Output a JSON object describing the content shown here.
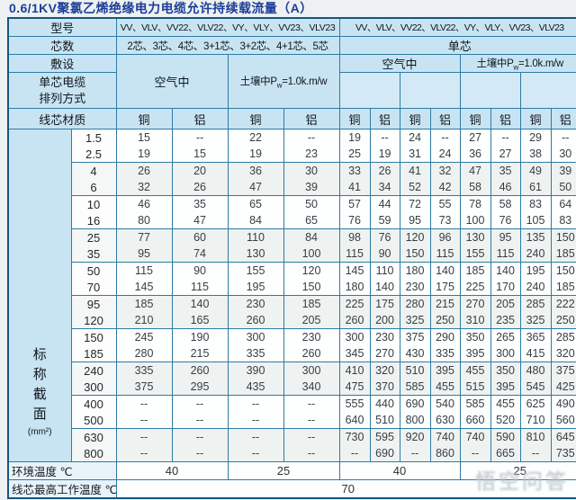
{
  "title": "0.6/1KV聚氯乙烯绝缘电力电缆允许持续载流量（A）",
  "header": {
    "model_label": "型号",
    "model_multi": "VV、VLV、VV22、VLV22、VY、VLY、VV23、VLV23",
    "model_single": "VV、VLV、VV22、VLV22、VY、VLY、VV23、VLV23",
    "cores_label": "芯数",
    "cores_multi": "2芯、3芯、4芯、3+1芯、3+2芯、4+1芯、5芯",
    "cores_single": "单芯",
    "laying_label": "敷设",
    "arrangement_line1": "单芯电缆",
    "arrangement_line2": "排列方式",
    "air_label": "空气中",
    "soil_prefix": "土壤中P",
    "soil_sub": "w",
    "soil_suffix": "=1.0k.m/w",
    "material_label": "线芯材质",
    "copper": "铜",
    "aluminum": "铝"
  },
  "section_label": {
    "chars": [
      "标",
      "称",
      "截",
      "面"
    ],
    "unit": "(mm²)"
  },
  "rows": [
    {
      "size": "1.5",
      "values": [
        "15",
        "--",
        "22",
        "--",
        "19",
        "--",
        "24",
        "--",
        "27",
        "--",
        "29",
        "--"
      ]
    },
    {
      "size": "2.5",
      "values": [
        "19",
        "15",
        "19",
        "23",
        "25",
        "19",
        "31",
        "24",
        "36",
        "27",
        "38",
        "30"
      ]
    },
    {
      "size": "4",
      "values": [
        "26",
        "20",
        "36",
        "30",
        "33",
        "26",
        "41",
        "32",
        "47",
        "35",
        "49",
        "39"
      ]
    },
    {
      "size": "6",
      "values": [
        "32",
        "26",
        "47",
        "39",
        "41",
        "34",
        "52",
        "42",
        "58",
        "46",
        "61",
        "50"
      ]
    },
    {
      "size": "10",
      "values": [
        "46",
        "35",
        "65",
        "50",
        "57",
        "44",
        "72",
        "55",
        "78",
        "58",
        "83",
        "64"
      ]
    },
    {
      "size": "16",
      "values": [
        "80",
        "47",
        "84",
        "65",
        "76",
        "59",
        "95",
        "73",
        "100",
        "76",
        "105",
        "83"
      ]
    },
    {
      "size": "25",
      "values": [
        "77",
        "60",
        "110",
        "84",
        "98",
        "76",
        "120",
        "96",
        "130",
        "95",
        "135",
        "150"
      ]
    },
    {
      "size": "35",
      "values": [
        "95",
        "74",
        "130",
        "100",
        "115",
        "90",
        "150",
        "115",
        "155",
        "115",
        "240",
        "185"
      ]
    },
    {
      "size": "50",
      "values": [
        "115",
        "90",
        "155",
        "120",
        "145",
        "110",
        "180",
        "140",
        "185",
        "140",
        "195",
        "150"
      ]
    },
    {
      "size": "70",
      "values": [
        "145",
        "115",
        "195",
        "150",
        "180",
        "140",
        "230",
        "175",
        "225",
        "170",
        "240",
        "185"
      ]
    },
    {
      "size": "95",
      "values": [
        "185",
        "140",
        "230",
        "185",
        "225",
        "175",
        "280",
        "215",
        "270",
        "205",
        "285",
        "222"
      ]
    },
    {
      "size": "120",
      "values": [
        "210",
        "165",
        "260",
        "205",
        "260",
        "200",
        "325",
        "250",
        "310",
        "235",
        "325",
        "250"
      ]
    },
    {
      "size": "150",
      "values": [
        "245",
        "190",
        "300",
        "230",
        "300",
        "230",
        "375",
        "290",
        "350",
        "265",
        "365",
        "285"
      ]
    },
    {
      "size": "185",
      "values": [
        "280",
        "215",
        "335",
        "260",
        "345",
        "270",
        "430",
        "335",
        "395",
        "300",
        "415",
        "320"
      ]
    },
    {
      "size": "240",
      "values": [
        "335",
        "260",
        "390",
        "300",
        "410",
        "320",
        "510",
        "395",
        "455",
        "350",
        "480",
        "375"
      ]
    },
    {
      "size": "300",
      "values": [
        "375",
        "295",
        "435",
        "340",
        "475",
        "370",
        "585",
        "455",
        "515",
        "395",
        "545",
        "425"
      ]
    },
    {
      "size": "400",
      "values": [
        "--",
        "--",
        "--",
        "--",
        "555",
        "440",
        "690",
        "540",
        "585",
        "455",
        "625",
        "490"
      ]
    },
    {
      "size": "500",
      "values": [
        "--",
        "--",
        "--",
        "--",
        "640",
        "510",
        "800",
        "630",
        "660",
        "520",
        "710",
        "560"
      ]
    },
    {
      "size": "630",
      "values": [
        "--",
        "--",
        "--",
        "--",
        "730",
        "595",
        "920",
        "740",
        "740",
        "590",
        "810",
        "645"
      ]
    },
    {
      "size": "800",
      "values": [
        "--",
        "--",
        "--",
        "--",
        "--",
        "690",
        "--",
        "860",
        "--",
        "665",
        "--",
        "735"
      ]
    }
  ],
  "footer": {
    "ambient_label": "环境温度 ℃",
    "ambient_values": [
      "40",
      "25",
      "40",
      "25"
    ],
    "max_temp_label": "线芯最高工作温度 ℃",
    "max_temp_value": "70"
  },
  "watermark": "悟空问答",
  "colors": {
    "title_text": "#1c3d99",
    "table_border": "#2e7ba3",
    "outer_border": "#15577d",
    "header_bg": "#c8e4f2",
    "tint_row_bg": "#eef2f0",
    "watermark_gray": "#bcc5cb"
  }
}
